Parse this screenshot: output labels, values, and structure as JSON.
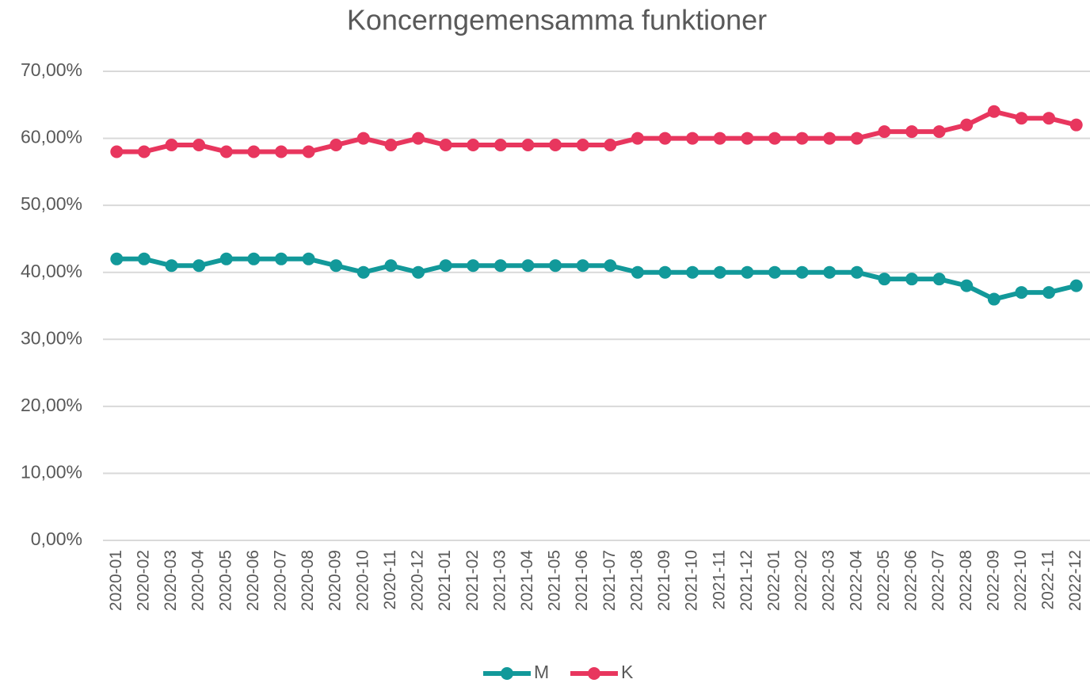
{
  "chart_data": {
    "type": "line",
    "title": "Koncerngemensamma funktioner",
    "categories": [
      "2020-01",
      "2020-02",
      "2020-03",
      "2020-04",
      "2020-05",
      "2020-06",
      "2020-07",
      "2020-08",
      "2020-09",
      "2020-10",
      "2020-11",
      "2020-12",
      "2021-01",
      "2021-02",
      "2021-03",
      "2021-04",
      "2021-05",
      "2021-06",
      "2021-07",
      "2021-08",
      "2021-09",
      "2021-10",
      "2021-11",
      "2021-12",
      "2022-01",
      "2022-02",
      "2022-03",
      "2022-04",
      "2022-05",
      "2022-06",
      "2022-07",
      "2022-08",
      "2022-09",
      "2022-10",
      "2022-11",
      "2022-12"
    ],
    "series": [
      {
        "name": "M",
        "color": "#12999a",
        "values": [
          42,
          42,
          41,
          41,
          42,
          42,
          42,
          42,
          41,
          40,
          41,
          40,
          41,
          41,
          41,
          41,
          41,
          41,
          41,
          40,
          40,
          40,
          40,
          40,
          40,
          40,
          40,
          40,
          39,
          39,
          39,
          38,
          36,
          37,
          37,
          38
        ]
      },
      {
        "name": "K",
        "color": "#e8365e",
        "values": [
          58,
          58,
          59,
          59,
          58,
          58,
          58,
          58,
          59,
          60,
          59,
          60,
          59,
          59,
          59,
          59,
          59,
          59,
          59,
          60,
          60,
          60,
          60,
          60,
          60,
          60,
          60,
          60,
          61,
          61,
          61,
          62,
          64,
          63,
          63,
          62
        ]
      }
    ],
    "ylim": [
      0,
      70
    ],
    "yticks": [
      {
        "value": 0,
        "label": "0,00%"
      },
      {
        "value": 10,
        "label": "10,00%"
      },
      {
        "value": 20,
        "label": "20,00%"
      },
      {
        "value": 30,
        "label": "30,00%"
      },
      {
        "value": 40,
        "label": "40,00%"
      },
      {
        "value": 50,
        "label": "50,00%"
      },
      {
        "value": 60,
        "label": "60,00%"
      },
      {
        "value": 70,
        "label": "70,00%"
      }
    ],
    "grid": true,
    "legend": "bottom"
  }
}
